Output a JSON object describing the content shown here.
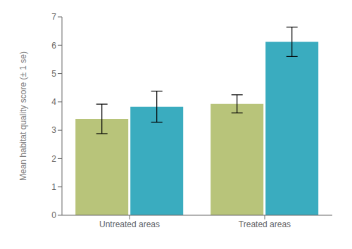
{
  "chart_data": {
    "type": "bar",
    "categories": [
      "Untreated areas",
      "Treated areas"
    ],
    "series": [
      {
        "color": "#b8c47a",
        "values": [
          3.4,
          3.93
        ],
        "errors": [
          0.52,
          0.32
        ]
      },
      {
        "color": "#3aacbf",
        "values": [
          3.83,
          6.12
        ],
        "errors": [
          0.55,
          0.52
        ]
      }
    ],
    "ylabel": "Mean habitat quality score (± 1 se)",
    "ylim": [
      0,
      7
    ],
    "yticks": [
      0,
      1,
      2,
      3,
      4,
      5,
      6,
      7
    ],
    "grid": false
  }
}
